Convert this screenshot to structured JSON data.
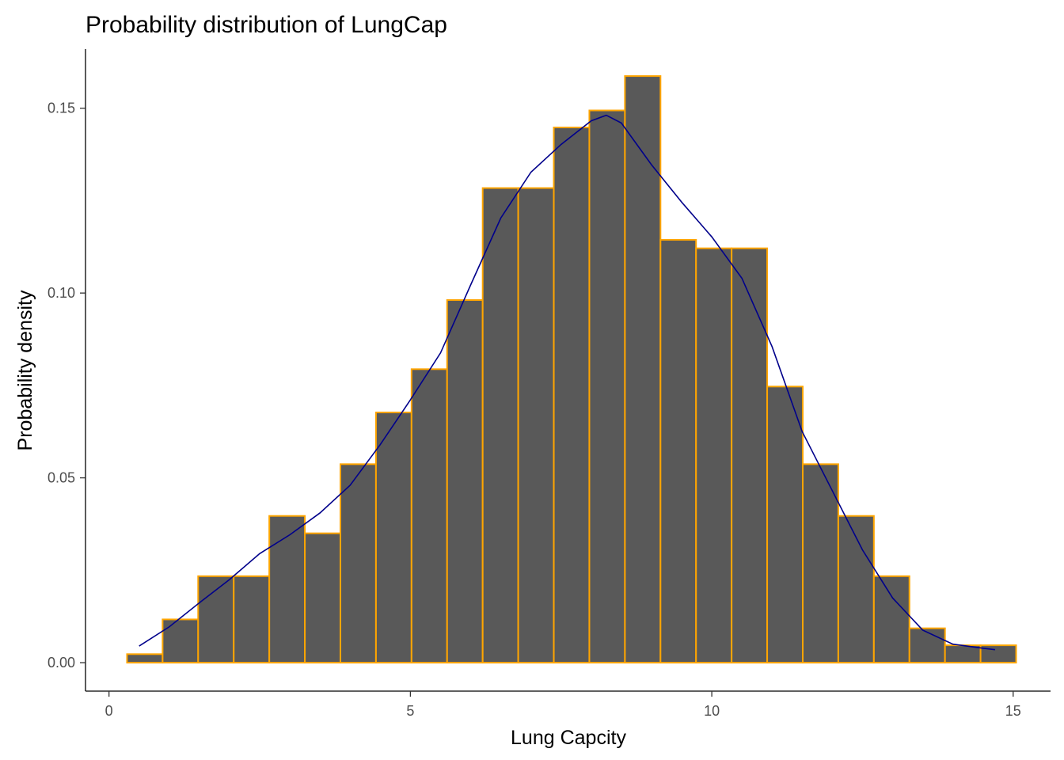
{
  "chart_data": {
    "type": "histogram",
    "title": "Probability distribution of LungCap",
    "xlabel": "Lung Capcity",
    "ylabel": "Probability density",
    "xlim": [
      -0.39,
      15.62
    ],
    "ylim": [
      -0.0077,
      0.166
    ],
    "xticks": [
      0,
      5,
      10,
      15
    ],
    "xtick_labels": [
      "0",
      "5",
      "10",
      "15"
    ],
    "yticks": [
      0,
      0.05,
      0.1,
      0.15
    ],
    "ytick_labels": [
      "0.00",
      "0.05",
      "0.10",
      "0.15"
    ],
    "grid": false,
    "bin_start": 0.299,
    "bin_width": 0.59,
    "values": [
      0.0023,
      0.0117,
      0.0234,
      0.0234,
      0.0397,
      0.035,
      0.0537,
      0.0677,
      0.0794,
      0.0981,
      0.1284,
      0.1284,
      0.1448,
      0.1494,
      0.1587,
      0.1144,
      0.1121,
      0.1121,
      0.0747,
      0.0537,
      0.0397,
      0.0234,
      0.0093,
      0.0047,
      0.0047
    ],
    "density_curve": {
      "x": [
        0.5,
        1.0,
        1.5,
        2.0,
        2.5,
        3.0,
        3.5,
        4.0,
        4.5,
        5.0,
        5.5,
        6.0,
        6.5,
        7.0,
        7.5,
        8.0,
        8.25,
        8.5,
        9.0,
        9.5,
        10.0,
        10.5,
        11.0,
        11.5,
        12.0,
        12.5,
        13.0,
        13.5,
        14.0,
        14.5,
        14.7
      ],
      "y": [
        0.0045,
        0.0097,
        0.0162,
        0.0225,
        0.0295,
        0.0346,
        0.0405,
        0.048,
        0.059,
        0.0711,
        0.0838,
        0.1022,
        0.1203,
        0.1327,
        0.1402,
        0.1466,
        0.1481,
        0.146,
        0.1347,
        0.1246,
        0.1152,
        0.104,
        0.0855,
        0.0625,
        0.0465,
        0.0305,
        0.0175,
        0.0088,
        0.005,
        0.0039,
        0.0035
      ]
    },
    "colors": {
      "bar_fill": "#595959",
      "bar_outline": "#FFA500",
      "density_line": "#00008B"
    }
  }
}
